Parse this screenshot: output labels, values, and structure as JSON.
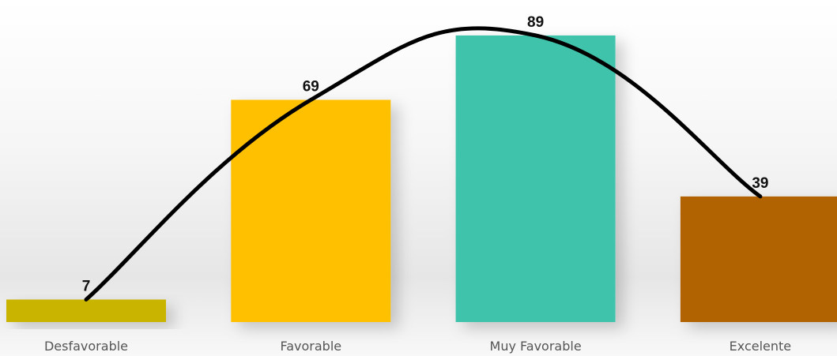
{
  "chart_data": {
    "type": "bar",
    "categories": [
      "Desfavorable",
      "Favorable",
      "Muy Favorable",
      "Excelente"
    ],
    "values": [
      7,
      69,
      89,
      39
    ],
    "colors": [
      "#c9b500",
      "#ffc000",
      "#40c3ab",
      "#b06300"
    ],
    "line_color": "#000000",
    "overlay": "smooth line through bar tops",
    "title": "",
    "xlabel": "",
    "ylabel": "",
    "ylim": [
      0,
      100
    ],
    "grid": false,
    "legend": "none"
  }
}
